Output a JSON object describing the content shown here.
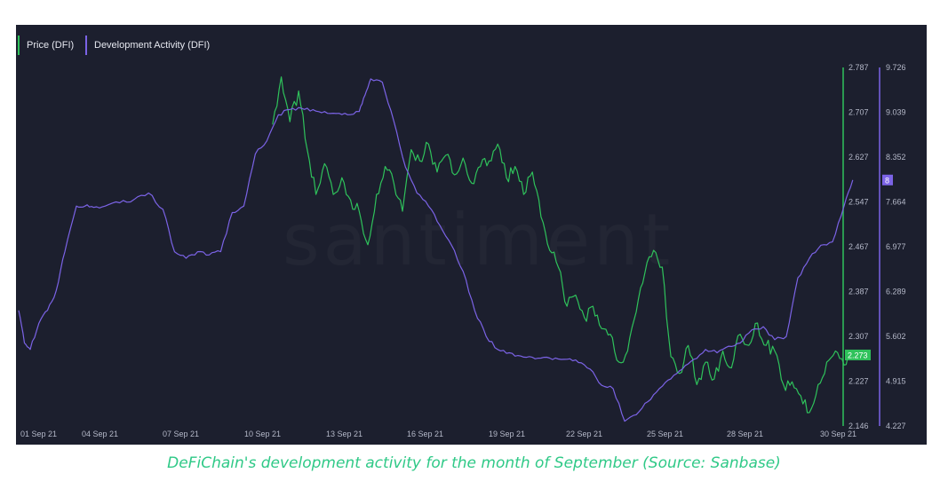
{
  "caption": "DeFiChain's development activity for the month of September (Source: Sanbase)",
  "watermark": "santiment",
  "colors": {
    "price": "#2fc25b",
    "dev": "#7b63e6",
    "background": "#1c1f2e"
  },
  "chart_data": {
    "type": "line",
    "legend": {
      "position": "top-left",
      "entries": [
        "Price (DFI)",
        "Development Activity (DFI)"
      ]
    },
    "grid": false,
    "x_ticks": [
      "01 Sep 21",
      "04 Sep 21",
      "07 Sep 21",
      "10 Sep 21",
      "13 Sep 21",
      "16 Sep 21",
      "19 Sep 21",
      "22 Sep 21",
      "25 Sep 21",
      "28 Sep 21",
      "30 Sep 21"
    ],
    "xlim": [
      1,
      30
    ],
    "y_price": {
      "ticks": [
        "2.787",
        "2.707",
        "2.627",
        "2.547",
        "2.467",
        "2.387",
        "2.307",
        "2.227",
        "2.146"
      ],
      "ylim": [
        2.146,
        2.787
      ],
      "current": "2.273"
    },
    "y_dev": {
      "ticks": [
        "9.726",
        "9.039",
        "8.352",
        "7.664",
        "6.977",
        "6.289",
        "5.602",
        "4.915",
        "4.227"
      ],
      "ylim": [
        4.227,
        9.726
      ],
      "current": "8"
    },
    "series": [
      {
        "name": "Price (DFI)",
        "axis": "price",
        "x": [
          9.8,
          10.1,
          10.4,
          10.7,
          11.0,
          11.3,
          11.6,
          11.9,
          12.2,
          12.5,
          12.8,
          13.1,
          13.4,
          13.7,
          14.0,
          14.3,
          14.6,
          14.9,
          15.2,
          15.5,
          15.8,
          16.1,
          16.4,
          16.7,
          17.0,
          17.3,
          17.6,
          17.9,
          18.2,
          18.5,
          18.8,
          19.1,
          19.4,
          19.7,
          20.0,
          20.3,
          20.6,
          20.9,
          21.2,
          21.5,
          21.8,
          22.1,
          22.4,
          22.7,
          23.0,
          23.3,
          23.6,
          23.9,
          24.2,
          24.5,
          24.8,
          25.1,
          25.4,
          25.7,
          26.0,
          26.3,
          26.6,
          26.9,
          27.2,
          27.5,
          27.8,
          28.1,
          28.4,
          28.7,
          29.0,
          29.3,
          29.6,
          29.9
        ],
        "values": [
          2.685,
          2.77,
          2.69,
          2.745,
          2.64,
          2.56,
          2.615,
          2.56,
          2.59,
          2.55,
          2.53,
          2.47,
          2.56,
          2.61,
          2.58,
          2.53,
          2.64,
          2.62,
          2.65,
          2.6,
          2.63,
          2.595,
          2.625,
          2.58,
          2.61,
          2.62,
          2.65,
          2.59,
          2.61,
          2.56,
          2.6,
          2.52,
          2.46,
          2.43,
          2.36,
          2.38,
          2.34,
          2.36,
          2.32,
          2.31,
          2.26,
          2.28,
          2.35,
          2.42,
          2.46,
          2.43,
          2.27,
          2.24,
          2.29,
          2.22,
          2.26,
          2.23,
          2.28,
          2.25,
          2.31,
          2.29,
          2.33,
          2.29,
          2.28,
          2.22,
          2.225,
          2.2,
          2.17,
          2.22,
          2.26,
          2.28,
          2.255,
          2.273
        ]
      },
      {
        "name": "Development Activity (DFI)",
        "axis": "dev",
        "x": [
          1.0,
          1.2,
          1.4,
          1.7,
          2.0,
          2.3,
          2.6,
          3.0,
          3.3,
          3.6,
          4.0,
          4.5,
          5.0,
          5.5,
          6.0,
          6.4,
          6.8,
          7.2,
          7.6,
          8.0,
          8.4,
          8.8,
          9.2,
          9.6,
          10.0,
          10.4,
          10.8,
          11.2,
          11.6,
          12.0,
          12.4,
          12.8,
          13.0,
          13.2,
          13.6,
          14.0,
          14.4,
          14.8,
          15.2,
          15.6,
          16.0,
          16.4,
          16.8,
          17.2,
          17.6,
          18.0,
          18.4,
          18.8,
          19.2,
          19.6,
          20.0,
          20.4,
          20.8,
          21.2,
          21.6,
          22.0,
          22.4,
          22.8,
          23.2,
          23.6,
          24.0,
          24.4,
          24.8,
          25.2,
          25.6,
          26.0,
          26.4,
          26.8,
          27.2,
          27.6,
          28.0,
          28.4,
          28.8,
          29.2,
          29.6,
          29.9
        ],
        "values": [
          6.0,
          5.5,
          5.4,
          5.8,
          6.0,
          6.3,
          6.9,
          7.6,
          7.6,
          7.58,
          7.6,
          7.65,
          7.7,
          7.8,
          7.55,
          6.9,
          6.8,
          6.9,
          6.85,
          6.9,
          7.5,
          7.6,
          8.4,
          8.6,
          9.0,
          9.08,
          9.1,
          9.08,
          9.05,
          9.02,
          9.0,
          9.05,
          9.3,
          9.55,
          9.5,
          8.9,
          8.2,
          7.8,
          7.6,
          7.3,
          7.0,
          6.6,
          6.0,
          5.6,
          5.4,
          5.35,
          5.3,
          5.28,
          5.28,
          5.27,
          5.25,
          5.2,
          5.1,
          4.85,
          4.8,
          4.3,
          4.4,
          4.6,
          4.8,
          4.95,
          5.1,
          5.25,
          5.4,
          5.35,
          5.45,
          5.5,
          5.7,
          5.75,
          5.55,
          5.6,
          6.5,
          6.8,
          7.0,
          7.05,
          7.6,
          8.0
        ]
      }
    ]
  }
}
